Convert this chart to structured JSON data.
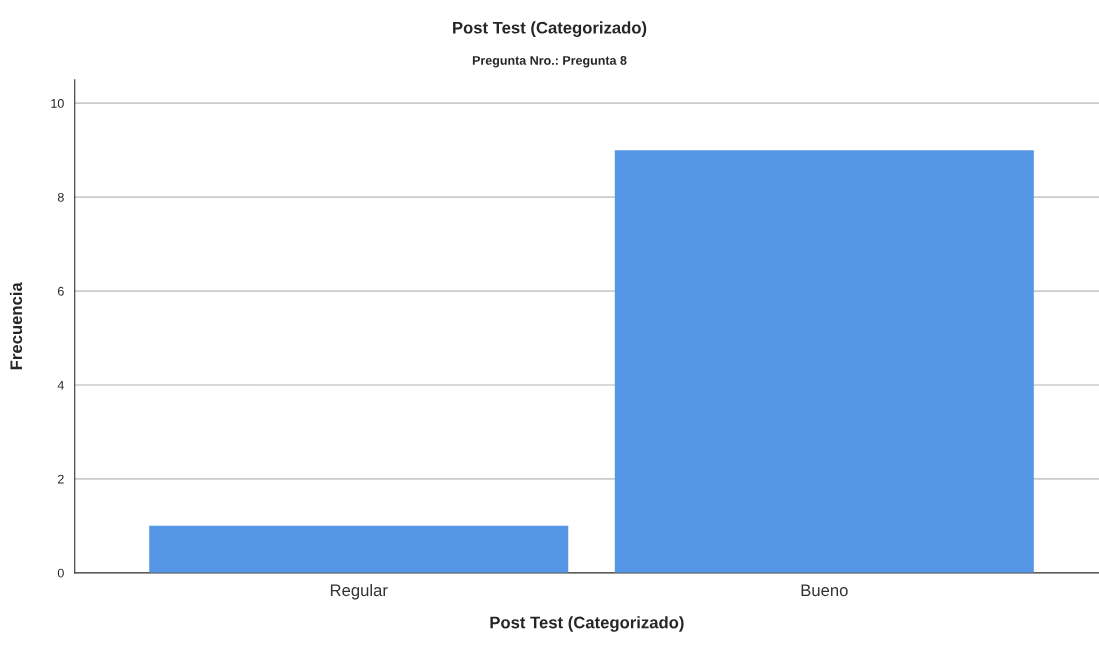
{
  "chart_data": {
    "type": "bar",
    "title": "Post Test (Categorizado)",
    "subtitle": "Pregunta Nro.: Pregunta 8",
    "xlabel": "Post Test (Categorizado)",
    "ylabel": "Frecuencia",
    "categories": [
      "Regular",
      "Bueno"
    ],
    "values": [
      1,
      9
    ],
    "color": "#5596e6",
    "ylim": [
      0,
      10.5
    ],
    "yticks": [
      0,
      2,
      4,
      6,
      8,
      10
    ],
    "grid": "y",
    "legend": false
  }
}
